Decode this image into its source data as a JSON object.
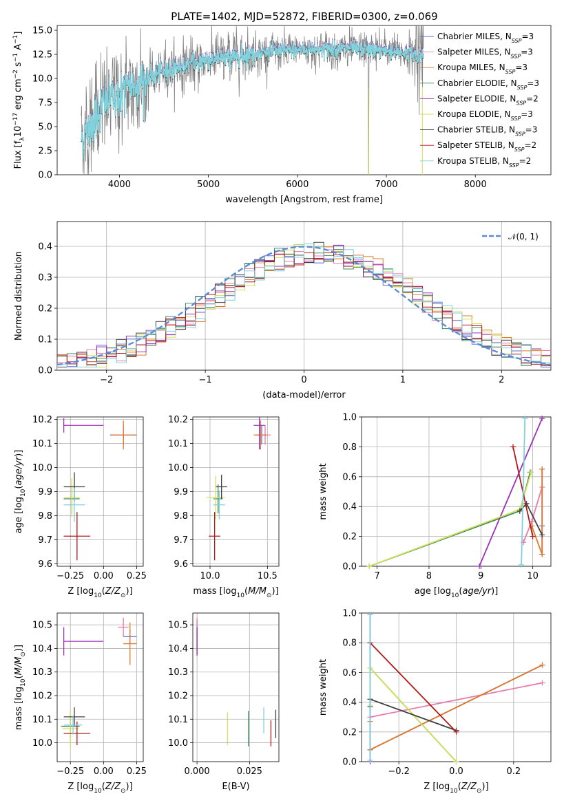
{
  "figure": {
    "title": "PLATE=1402, MJD=52872, FIBERID=0300, z=0.069"
  },
  "models": [
    {
      "name": "Chabrier MILES",
      "nssp": "3",
      "color": "#5b6cd6"
    },
    {
      "name": "Salpeter MILES",
      "nssp": "3",
      "color": "#e87aa8"
    },
    {
      "name": "Kroupa MILES",
      "nssp": "3",
      "color": "#e07a28"
    },
    {
      "name": "Chabrier ELODIE",
      "nssp": "3",
      "color": "#3d8a5a"
    },
    {
      "name": "Salpeter ELODIE",
      "nssp": "2",
      "color": "#9b30b8"
    },
    {
      "name": "Kroupa ELODIE",
      "nssp": "3",
      "color": "#d4e05a"
    },
    {
      "name": "Chabrier STELIB",
      "nssp": "3",
      "color": "#404040"
    },
    {
      "name": "Salpeter STELIB",
      "nssp": "2",
      "color": "#b01818"
    },
    {
      "name": "Kroupa STELIB",
      "nssp": "2",
      "color": "#80d0e0"
    }
  ],
  "chart_data": [
    {
      "id": "spectrum",
      "type": "line",
      "xlabel": "wavelength [Angstrom, rest frame]",
      "ylabel": "Flux [f_λ 10^-17 erg cm^-2 s^-1 A^-1]",
      "xlim": [
        3300,
        8850
      ],
      "ylim": [
        0,
        15.5
      ],
      "xticks": [
        4000,
        5000,
        6000,
        7000,
        8000
      ],
      "yticks": [
        0.0,
        2.5,
        5.0,
        7.5,
        10.0,
        12.5,
        15.0
      ],
      "legend_position": "right",
      "grid": false,
      "data_color": "#808080",
      "model_color": "#7fd3dd",
      "continuum": {
        "x": [
          3600,
          3700,
          3800,
          3900,
          4000,
          4100,
          4200,
          4300,
          4500,
          4700,
          5000,
          5300,
          5600,
          6000,
          6500,
          7000,
          7400
        ],
        "y": [
          4.0,
          5.5,
          7.2,
          7.8,
          8.3,
          9.0,
          9.5,
          9.8,
          10.8,
          11.3,
          12.0,
          12.3,
          12.7,
          13.0,
          13.1,
          12.9,
          12.4
        ]
      },
      "absorption_features": [
        {
          "x": 4861,
          "y": 11.0
        },
        {
          "x": 5175,
          "y": 10.0
        },
        {
          "x": 5890,
          "y": 11.6
        },
        {
          "x": 6563,
          "y": 11.3
        },
        {
          "x": 6800,
          "y": 0.0
        },
        {
          "x": 7400,
          "y": 0.0
        }
      ]
    },
    {
      "id": "residual-histogram",
      "type": "line",
      "xlabel": "(data-model)/error",
      "ylabel": "Normed distribution",
      "xlim": [
        -2.5,
        2.5
      ],
      "ylim": [
        0,
        0.48
      ],
      "xticks": [
        -2,
        -1,
        0,
        1,
        2
      ],
      "yticks": [
        0.0,
        0.1,
        0.2,
        0.3,
        0.4
      ],
      "grid": true,
      "legend_position": "top-right",
      "reference": {
        "label": "𝒩(0, 1)",
        "mean": 0,
        "sigma": 1,
        "color": "#5b8ad6"
      }
    },
    {
      "id": "age-vs-metallicity",
      "type": "scatter",
      "xlabel": "Z [log10(Z/Z⊙)]",
      "ylabel": "age  [log10(age/yr)]",
      "xlim": [
        -0.35,
        0.3
      ],
      "ylim": [
        9.59,
        10.21
      ],
      "xticks": [
        -0.25,
        0.0,
        0.25
      ],
      "yticks": [
        9.6,
        9.7,
        9.8,
        9.9,
        10.0,
        10.1,
        10.2
      ],
      "grid": true,
      "points": [
        {
          "model": 0,
          "x": 0.15,
          "y": 10.135,
          "xerr": 0.1,
          "yerr": 0.04
        },
        {
          "model": 1,
          "x": 0.15,
          "y": 10.135,
          "xerr": 0.08,
          "yerr": 0.04
        },
        {
          "model": 2,
          "x": 0.15,
          "y": 10.135,
          "xerr": 0.09,
          "yerr": 0.06
        },
        {
          "model": 3,
          "x": -0.24,
          "y": 9.87,
          "xerr": 0.06,
          "yerr": 0.06
        },
        {
          "model": 4,
          "x": -0.3,
          "y": 10.175,
          "xerr": 0.0,
          "yerr": 0.03
        },
        {
          "model": 4,
          "x": -0.15,
          "y": 10.175,
          "xerr": 0.15,
          "yerr": 0.0
        },
        {
          "model": 5,
          "x": -0.24,
          "y": 9.875,
          "xerr": 0.06,
          "yerr": 0.08
        },
        {
          "model": 6,
          "x": -0.22,
          "y": 9.92,
          "xerr": 0.08,
          "yerr": 0.06
        },
        {
          "model": 7,
          "x": -0.2,
          "y": 9.715,
          "xerr": 0.1,
          "yerr": 0.1
        },
        {
          "model": 8,
          "x": -0.22,
          "y": 9.845,
          "xerr": 0.08,
          "yerr": 0.07
        }
      ]
    },
    {
      "id": "age-vs-mass",
      "type": "scatter",
      "xlabel": "mass [log10(M/M⊙)]",
      "ylabel": "",
      "xlim": [
        9.85,
        10.6
      ],
      "ylim": [
        9.59,
        10.21
      ],
      "xticks": [
        10.0,
        10.5
      ],
      "yticks": [
        9.6,
        9.7,
        9.8,
        9.9,
        10.0,
        10.1,
        10.2
      ],
      "grid": true,
      "points": [
        {
          "model": 0,
          "x": 10.45,
          "y": 10.135,
          "xerr": 0.05,
          "yerr": 0.04
        },
        {
          "model": 1,
          "x": 10.48,
          "y": 10.135,
          "xerr": 0.05,
          "yerr": 0.04
        },
        {
          "model": 2,
          "x": 10.44,
          "y": 10.135,
          "xerr": 0.06,
          "yerr": 0.06
        },
        {
          "model": 3,
          "x": 10.07,
          "y": 9.87,
          "xerr": 0.04,
          "yerr": 0.06
        },
        {
          "model": 4,
          "x": 10.43,
          "y": 10.175,
          "xerr": 0.05,
          "yerr": 0.1
        },
        {
          "model": 5,
          "x": 10.05,
          "y": 9.875,
          "xerr": 0.08,
          "yerr": 0.09
        },
        {
          "model": 6,
          "x": 10.1,
          "y": 9.92,
          "xerr": 0.05,
          "yerr": 0.05
        },
        {
          "model": 7,
          "x": 10.04,
          "y": 9.715,
          "xerr": 0.05,
          "yerr": 0.1
        },
        {
          "model": 8,
          "x": 10.08,
          "y": 9.845,
          "xerr": 0.05,
          "yerr": 0.06
        }
      ]
    },
    {
      "id": "mass-weight-vs-age",
      "type": "line",
      "xlabel": "age  [log10(age/yr)]",
      "ylabel": "mass weight",
      "xlim": [
        6.7,
        10.35
      ],
      "ylim": [
        0.0,
        1.0
      ],
      "xticks": [
        7,
        8,
        9,
        10
      ],
      "yticks": [
        0.0,
        0.2,
        0.4,
        0.6,
        0.8,
        1.0
      ],
      "grid": true,
      "series": [
        {
          "model": 0,
          "x": [
            10.18,
            10.18,
            10.18
          ],
          "y": [
            0.08,
            0.27,
            0.65
          ]
        },
        {
          "model": 1,
          "x": [
            9.82,
            9.98,
            10.18
          ],
          "y": [
            0.16,
            0.3,
            0.53
          ]
        },
        {
          "model": 2,
          "x": [
            9.98,
            10.18,
            10.18
          ],
          "y": [
            0.27,
            0.08,
            0.65
          ]
        },
        {
          "model": 3,
          "x": [
            6.85,
            9.75,
            9.95
          ],
          "y": [
            0.0,
            0.37,
            0.63
          ]
        },
        {
          "model": 4,
          "x": [
            8.97,
            10.18
          ],
          "y": [
            0.0,
            0.99
          ]
        },
        {
          "model": 5,
          "x": [
            6.85,
            9.75,
            9.97
          ],
          "y": [
            0.0,
            0.38,
            0.63
          ]
        },
        {
          "model": 6,
          "x": [
            9.75,
            9.88,
            10.18
          ],
          "y": [
            0.37,
            0.42,
            0.21
          ]
        },
        {
          "model": 7,
          "x": [
            9.62,
            10.0
          ],
          "y": [
            0.8,
            0.2
          ]
        },
        {
          "model": 8,
          "x": [
            9.78,
            9.85
          ],
          "y": [
            0.01,
            0.99
          ]
        }
      ]
    },
    {
      "id": "mass-vs-metallicity",
      "type": "scatter",
      "xlabel": "Z [log10(Z/Z⊙)]",
      "ylabel": "mass [log10(M/M⊙)]",
      "xlim": [
        -0.35,
        0.3
      ],
      "ylim": [
        9.92,
        10.55
      ],
      "xticks": [
        -0.25,
        0.0,
        0.25
      ],
      "yticks": [
        10.0,
        10.1,
        10.2,
        10.3,
        10.4,
        10.5
      ],
      "grid": true,
      "points": [
        {
          "model": 0,
          "x": 0.2,
          "y": 10.45,
          "xerr": 0.05,
          "yerr": 0.03
        },
        {
          "model": 1,
          "x": 0.15,
          "y": 10.49,
          "xerr": 0.04,
          "yerr": 0.04
        },
        {
          "model": 2,
          "x": 0.2,
          "y": 10.42,
          "xerr": 0.05,
          "yerr": 0.09
        },
        {
          "model": 3,
          "x": -0.25,
          "y": 10.07,
          "xerr": 0.07,
          "yerr": 0.05
        },
        {
          "model": 4,
          "x": -0.3,
          "y": 10.43,
          "xerr": 0.0,
          "yerr": 0.06
        },
        {
          "model": 4,
          "x": -0.15,
          "y": 10.43,
          "xerr": 0.15,
          "yerr": 0.0
        },
        {
          "model": 5,
          "x": -0.25,
          "y": 10.06,
          "xerr": 0.06,
          "yerr": 0.08
        },
        {
          "model": 6,
          "x": -0.22,
          "y": 10.11,
          "xerr": 0.08,
          "yerr": 0.04
        },
        {
          "model": 7,
          "x": -0.2,
          "y": 10.04,
          "xerr": 0.1,
          "yerr": 0.05
        },
        {
          "model": 8,
          "x": -0.23,
          "y": 10.075,
          "xerr": 0.07,
          "yerr": 0.04
        }
      ]
    },
    {
      "id": "mass-vs-ebv",
      "type": "scatter",
      "xlabel": "E(B-V)",
      "ylabel": "",
      "xlim": [
        -0.002,
        0.039
      ],
      "ylim": [
        9.92,
        10.55
      ],
      "xticks": [
        0.0,
        0.025
      ],
      "yticks": [
        10.0,
        10.1,
        10.2,
        10.3,
        10.4,
        10.5
      ],
      "grid": true,
      "points": [
        {
          "model": 0,
          "x": 0.0,
          "y": 10.45,
          "xerr": 0.0,
          "yerr": 0.07
        },
        {
          "model": 1,
          "x": 0.0,
          "y": 10.49,
          "xerr": 0.0,
          "yerr": 0.04
        },
        {
          "model": 2,
          "x": 0.0,
          "y": 10.42,
          "xerr": 0.0,
          "yerr": 0.05
        },
        {
          "model": 4,
          "x": 0.0,
          "y": 10.43,
          "xerr": 0.0,
          "yerr": 0.06
        },
        {
          "model": 5,
          "x": 0.0145,
          "y": 10.06,
          "xerr": 0.0,
          "yerr": 0.07
        },
        {
          "model": 3,
          "x": 0.0245,
          "y": 10.06,
          "xerr": 0.0,
          "yerr": 0.075
        },
        {
          "model": 8,
          "x": 0.0318,
          "y": 10.095,
          "xerr": 0.0,
          "yerr": 0.055
        },
        {
          "model": 7,
          "x": 0.0352,
          "y": 10.04,
          "xerr": 0.0,
          "yerr": 0.055
        },
        {
          "model": 6,
          "x": 0.0375,
          "y": 10.08,
          "xerr": 0.0,
          "yerr": 0.06
        }
      ]
    },
    {
      "id": "mass-weight-vs-metallicity",
      "type": "line",
      "xlabel": "Z [log10(Z/Z⊙)]",
      "ylabel": "mass weight",
      "xlim": [
        -0.33,
        0.33
      ],
      "ylim": [
        0.0,
        1.0
      ],
      "xticks": [
        -0.2,
        0.0,
        0.2
      ],
      "yticks": [
        0.0,
        0.2,
        0.4,
        0.6,
        0.8,
        1.0
      ],
      "grid": true,
      "series": [
        {
          "model": 0,
          "x": [
            -0.3,
            0.3
          ],
          "y": [
            0.08,
            0.65
          ]
        },
        {
          "model": 1,
          "x": [
            -0.3,
            0.3
          ],
          "y": [
            0.3,
            0.53
          ]
        },
        {
          "model": 2,
          "x": [
            -0.3,
            -0.3,
            0.3
          ],
          "y": [
            0.27,
            0.08,
            0.65
          ]
        },
        {
          "model": 3,
          "x": [
            -0.3,
            -0.3,
            0.0
          ],
          "y": [
            0.37,
            0.63,
            0.0
          ]
        },
        {
          "model": 4,
          "x": [
            -0.3,
            -0.3
          ],
          "y": [
            0.0,
            0.99
          ]
        },
        {
          "model": 5,
          "x": [
            -0.3,
            -0.3,
            0.0
          ],
          "y": [
            0.38,
            0.63,
            0.0
          ]
        },
        {
          "model": 6,
          "x": [
            -0.3,
            -0.3,
            0.0
          ],
          "y": [
            0.37,
            0.42,
            0.21
          ]
        },
        {
          "model": 7,
          "x": [
            -0.3,
            0.0
          ],
          "y": [
            0.8,
            0.2
          ]
        },
        {
          "model": 8,
          "x": [
            -0.3,
            -0.3
          ],
          "y": [
            0.01,
            0.99
          ]
        }
      ]
    }
  ]
}
